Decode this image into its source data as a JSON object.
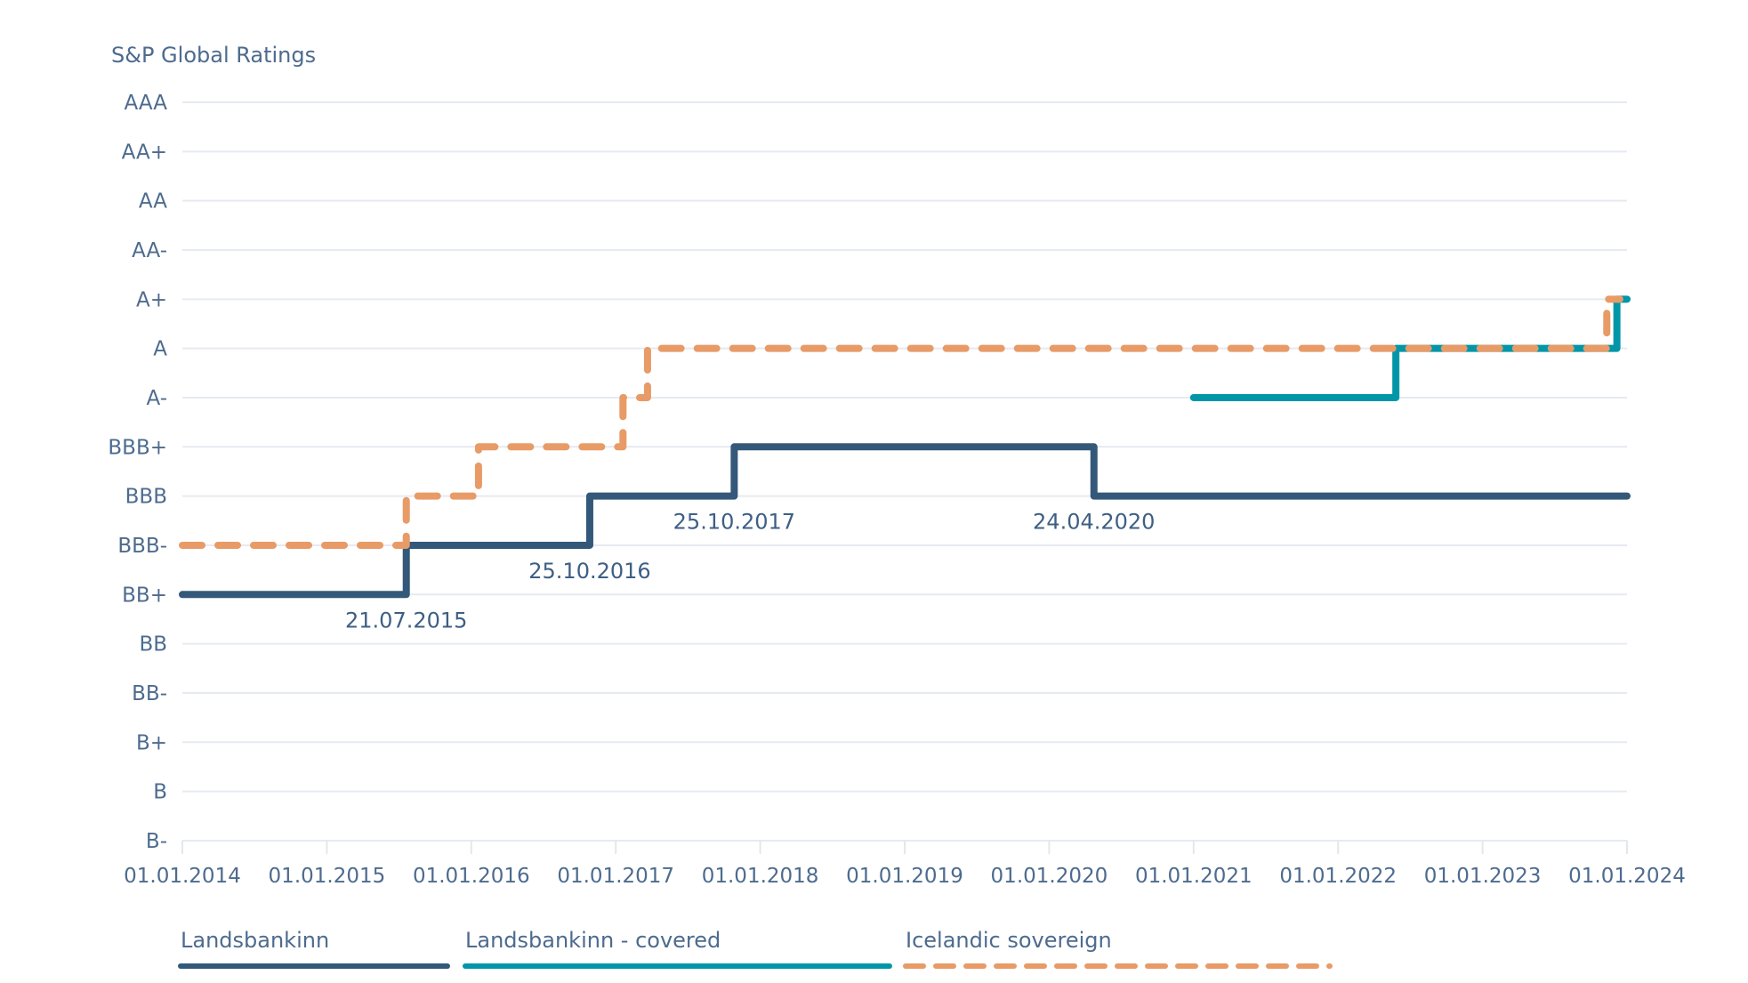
{
  "chart_data": {
    "type": "line",
    "subtype": "step",
    "title": "S&P Global Ratings",
    "xlabel": "",
    "ylabel": "",
    "y_categories": [
      "AAA",
      "AA+",
      "AA",
      "AA-",
      "A+",
      "A",
      "A-",
      "BBB+",
      "BBB",
      "BBB-",
      "BB+",
      "BB",
      "BB-",
      "B+",
      "B",
      "B-"
    ],
    "x_ticks": [
      "01.01.2014",
      "01.01.2015",
      "01.01.2016",
      "01.01.2017",
      "01.01.2018",
      "01.01.2019",
      "01.01.2020",
      "01.01.2021",
      "01.01.2022",
      "01.01.2023",
      "01.01.2024"
    ],
    "x_range": [
      2014.0,
      2024.0
    ],
    "grid": true,
    "legend_position": "bottom-left",
    "series": [
      {
        "name": "Landsbankinn",
        "color": "#335879",
        "dash": false,
        "points": [
          {
            "x": 2014.0,
            "rating": "BB+"
          },
          {
            "x": 2015.55,
            "rating": "BBB-"
          },
          {
            "x": 2016.82,
            "rating": "BBB"
          },
          {
            "x": 2017.82,
            "rating": "BBB+"
          },
          {
            "x": 2020.31,
            "rating": "BBB"
          },
          {
            "x": 2024.0,
            "rating": "BBB"
          }
        ]
      },
      {
        "name": "Landsbankinn - covered",
        "color": "#0096a8",
        "dash": false,
        "points": [
          {
            "x": 2021.0,
            "rating": "A-"
          },
          {
            "x": 2022.4,
            "rating": "A"
          },
          {
            "x": 2023.93,
            "rating": "A+"
          },
          {
            "x": 2024.0,
            "rating": "A+"
          }
        ]
      },
      {
        "name": "Icelandic sovereign",
        "color": "#e89b67",
        "dash": true,
        "points": [
          {
            "x": 2014.0,
            "rating": "BBB-"
          },
          {
            "x": 2015.55,
            "rating": "BBB"
          },
          {
            "x": 2016.05,
            "rating": "BBB+"
          },
          {
            "x": 2017.05,
            "rating": "A-"
          },
          {
            "x": 2017.22,
            "rating": "A"
          },
          {
            "x": 2023.86,
            "rating": "A+"
          }
        ]
      }
    ],
    "annotations": [
      {
        "text": "21.07.2015",
        "x": 2015.55,
        "series": "Landsbankinn"
      },
      {
        "text": "25.10.2016",
        "x": 2016.82,
        "series": "Landsbankinn"
      },
      {
        "text": "25.10.2017",
        "x": 2017.82,
        "series": "Landsbankinn"
      },
      {
        "text": "24.04.2020",
        "x": 2020.31,
        "series": "Landsbankinn"
      }
    ]
  }
}
